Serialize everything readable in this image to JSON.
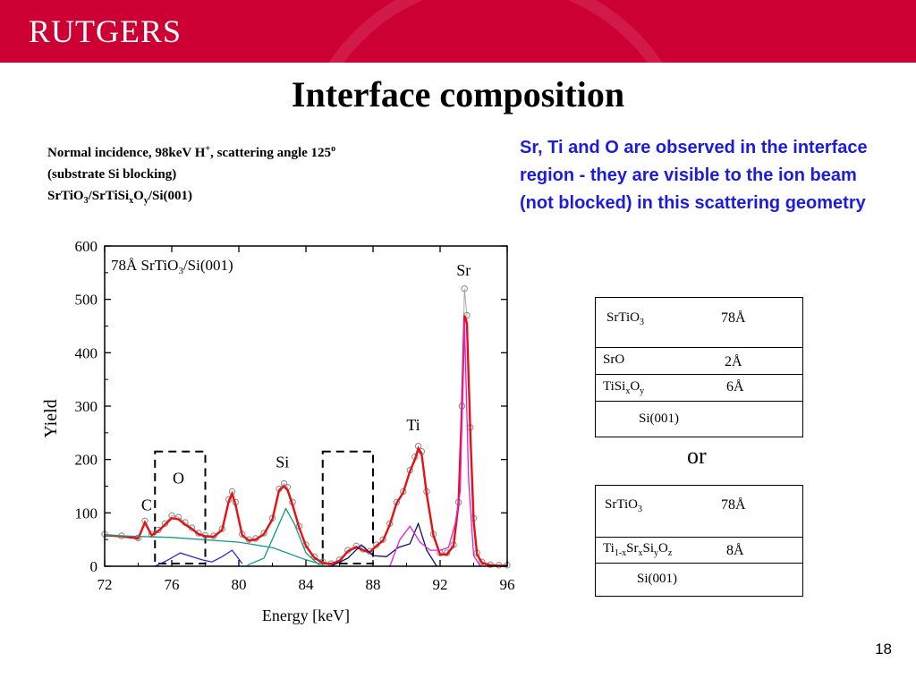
{
  "header": {
    "logo_text": "RUTGERS",
    "banner_color": "#cc0033"
  },
  "slide": {
    "title": "Interface composition",
    "page_number": "18",
    "caption": {
      "line1": "Normal incidence, 98keV H",
      "line1_sup": "+",
      "line1_rest": ", scattering angle 125",
      "line1_deg": "o",
      "line2": "(substrate Si blocking)",
      "line3_a": "SrTiO",
      "line3_sub3": "3",
      "line3_b": "/SrTiSi",
      "line3_subx": "x",
      "line3_c": "O",
      "line3_suby": "y",
      "line3_d": "/Si(001)"
    },
    "note": "Sr, Ti and O are observed in the interface region - they are visible to the ion beam (not blocked) in this scattering geometry",
    "or_label": "or"
  },
  "structure_a": {
    "srtio3_name": "SrTiO",
    "srtio3_sub": "3",
    "srtio3_thick": "78Å",
    "sro_name": "SrO",
    "sro_thick": "2Å",
    "tisi_name": "TiSi",
    "tisi_sub_x": "x",
    "tisi_o": "O",
    "tisi_sub_y": "y",
    "tisi_thick": "6Å",
    "substrate": "Si(001)"
  },
  "structure_b": {
    "srtio3_name": "SrTiO",
    "srtio3_sub": "3",
    "srtio3_thick": "78Å",
    "layer_ti": "Ti",
    "layer_sub1": "1-x",
    "layer_sr": "Sr",
    "layer_subx": "x",
    "layer_si": "Si",
    "layer_suby": "y",
    "layer_o": "O",
    "layer_subz": "z",
    "layer_thick": "8Å",
    "substrate": "Si(001)"
  },
  "chart_data": {
    "type": "line",
    "xlabel": "Energy [keV]",
    "ylabel": "Yield",
    "xlim": [
      72,
      96
    ],
    "ylim": [
      0,
      600
    ],
    "xticks": [
      72,
      76,
      80,
      84,
      88,
      92,
      96
    ],
    "yticks": [
      0,
      100,
      200,
      300,
      400,
      500,
      600
    ],
    "annotation": {
      "text_a": "78Å SrTiO",
      "text_sub": "3",
      "text_b": "/Si(001)"
    },
    "peak_labels": [
      {
        "text": "C",
        "x": 74.5,
        "y": 105
      },
      {
        "text": "O",
        "x": 76.4,
        "y": 155
      },
      {
        "text": "Si",
        "x": 82.6,
        "y": 185
      },
      {
        "text": "Ti",
        "x": 90.4,
        "y": 255
      },
      {
        "text": "Sr",
        "x": 93.4,
        "y": 545
      }
    ],
    "dashed_windows": [
      {
        "x0": 75.0,
        "x1": 78.0,
        "y0": 5,
        "y1": 215
      },
      {
        "x0": 85.0,
        "x1": 88.0,
        "y0": 5,
        "y1": 215
      }
    ],
    "series": [
      {
        "kind": "measured",
        "color": "#888888",
        "x": [
          72,
          73,
          74,
          74.4,
          74.8,
          75.2,
          75.6,
          76.0,
          76.4,
          76.8,
          77.2,
          77.6,
          78.0,
          78.5,
          79.0,
          79.4,
          79.6,
          79.8,
          80.2,
          80.6,
          81.0,
          81.5,
          82.0,
          82.4,
          82.7,
          82.9,
          83.2,
          83.6,
          84.0,
          84.5,
          85.0,
          85.5,
          86.0,
          86.5,
          87.0,
          87.4,
          87.8,
          88.2,
          88.6,
          89.0,
          89.4,
          89.8,
          90.2,
          90.5,
          90.7,
          90.9,
          91.2,
          91.6,
          92.0,
          92.4,
          92.8,
          93.1,
          93.3,
          93.45,
          93.6,
          93.8,
          94.0,
          94.2,
          94.5,
          95.0,
          95.5,
          96.0
        ],
        "y": [
          60,
          57,
          53,
          85,
          60,
          68,
          80,
          95,
          92,
          82,
          72,
          62,
          58,
          57,
          70,
          125,
          140,
          120,
          60,
          50,
          52,
          62,
          90,
          145,
          155,
          148,
          120,
          75,
          40,
          18,
          8,
          5,
          12,
          30,
          38,
          32,
          28,
          40,
          50,
          80,
          120,
          140,
          180,
          205,
          225,
          215,
          140,
          60,
          25,
          25,
          40,
          120,
          300,
          520,
          470,
          260,
          90,
          25,
          8,
          3,
          2,
          2
        ]
      },
      {
        "kind": "simulated_total",
        "color": "#e81010",
        "x": [
          72,
          73,
          74,
          74.4,
          74.8,
          75.2,
          75.6,
          76.0,
          76.4,
          76.8,
          77.2,
          77.6,
          78.0,
          78.5,
          79.0,
          79.4,
          79.6,
          79.8,
          80.2,
          80.6,
          81.0,
          81.5,
          82.0,
          82.4,
          82.7,
          82.9,
          83.2,
          83.6,
          84.0,
          84.5,
          85.0,
          85.5,
          86.0,
          86.5,
          87.0,
          87.4,
          87.8,
          88.2,
          88.6,
          89.0,
          89.4,
          89.8,
          90.2,
          90.5,
          90.7,
          90.9,
          91.2,
          91.6,
          92.0,
          92.4,
          92.8,
          93.1,
          93.3,
          93.45,
          93.6,
          93.8,
          94.0,
          94.2,
          94.5,
          95.0,
          95.5,
          96.0
        ],
        "y": [
          58,
          56,
          52,
          82,
          58,
          66,
          78,
          90,
          88,
          78,
          70,
          60,
          56,
          55,
          68,
          122,
          136,
          116,
          58,
          48,
          50,
          60,
          88,
          142,
          150,
          143,
          115,
          72,
          38,
          16,
          6,
          4,
          10,
          28,
          36,
          30,
          26,
          38,
          48,
          78,
          118,
          138,
          178,
          200,
          220,
          210,
          135,
          58,
          22,
          22,
          38,
          118,
          295,
          470,
          455,
          250,
          85,
          22,
          6,
          2,
          1,
          1
        ]
      },
      {
        "kind": "background",
        "color": "#139a84",
        "x": [
          72,
          76,
          80,
          82,
          84,
          85
        ],
        "y": [
          58,
          54,
          45,
          35,
          12,
          3
        ]
      },
      {
        "kind": "si_component",
        "color": "#139a84",
        "x": [
          80.5,
          81.5,
          82.2,
          82.8,
          83.3,
          84.0,
          84.8
        ],
        "y": [
          2,
          15,
          65,
          108,
          80,
          25,
          2
        ]
      },
      {
        "kind": "o_components",
        "color": "#2a2ad8",
        "x": [
          75.0,
          75.8,
          76.5,
          77.2,
          77.8,
          78.4,
          79.0,
          79.6,
          80.2
        ],
        "y": [
          0,
          12,
          25,
          18,
          12,
          8,
          18,
          30,
          5
        ]
      },
      {
        "kind": "ti_components",
        "color": "#10107a",
        "x": [
          85.5,
          86.5,
          87.3,
          88.0,
          88.8,
          89.5,
          90.2,
          90.7,
          91.2,
          91.8
        ],
        "y": [
          0,
          15,
          40,
          20,
          18,
          35,
          42,
          80,
          30,
          0
        ]
      },
      {
        "kind": "sr_components",
        "color": "#e020e0",
        "x": [
          89.0,
          89.6,
          90.2,
          90.8,
          91.4,
          92.0,
          92.5,
          92.9,
          93.2,
          93.45,
          93.7,
          94.0,
          94.4
        ],
        "y": [
          0,
          50,
          75,
          45,
          30,
          30,
          35,
          80,
          140,
          460,
          160,
          20,
          0
        ]
      }
    ]
  }
}
